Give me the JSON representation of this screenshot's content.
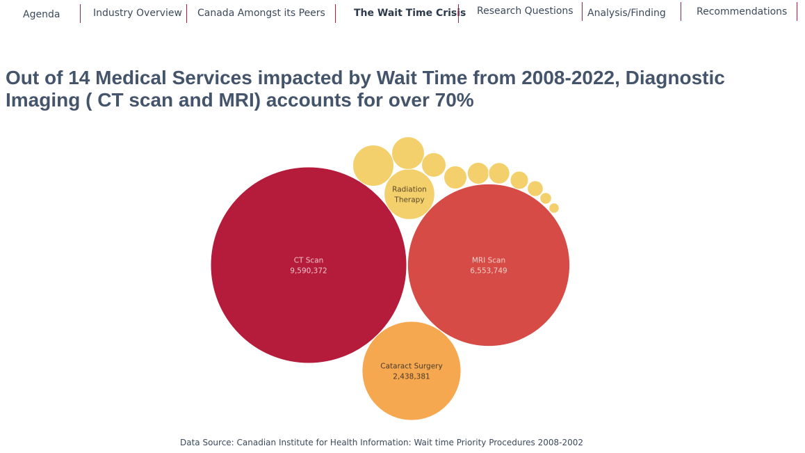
{
  "nav": {
    "items": [
      {
        "label": "Agenda",
        "active": false
      },
      {
        "label": "Industry Overview",
        "active": false
      },
      {
        "label": "Canada Amongst its Peers",
        "active": false
      },
      {
        "label": "The Wait Time Crisis",
        "active": true
      },
      {
        "label": "Research Questions",
        "active": false
      },
      {
        "label": "Analysis/Finding",
        "active": false
      },
      {
        "label": "Recommendations",
        "active": false
      }
    ]
  },
  "page": {
    "title": "Out of 14 Medical Services impacted by Wait Time from 2008-2022, Diagnostic Imaging ( CT scan and MRI) accounts for over 70%",
    "source": "Data Source: Canadian Institute for Health Information: Wait time Priority Procedures 2008-2002"
  },
  "colors": {
    "ct": "#b51b3b",
    "mri": "#d64b46",
    "cataract": "#f5a84f",
    "other": "#f3d06b",
    "nav_divider": "#b5193c",
    "title": "#44546a"
  },
  "chart_data": {
    "type": "bubble",
    "title": "",
    "bubbles": [
      {
        "name": "CT Scan",
        "value": 9590372,
        "value_label": "9,590,372",
        "color": "#b51b3b",
        "label_color": "#f0c4cc"
      },
      {
        "name": "MRI Scan",
        "value": 6553749,
        "value_label": "6,553,749",
        "color": "#d64b46",
        "label_color": "#f6cfc9"
      },
      {
        "name": "Cataract Surgery",
        "value": 2438381,
        "value_label": "2,438,381",
        "color": "#f5a84f",
        "label_color": "#4a3a2a"
      },
      {
        "name": "Radiation Therapy",
        "value": 636000,
        "value_label": "",
        "color": "#f3d06b",
        "label_color": "#5a4a2a"
      },
      {
        "name": "",
        "value": 420000,
        "value_label": "",
        "color": "#f3d06b"
      },
      {
        "name": "",
        "value": 265000,
        "value_label": "",
        "color": "#f3d06b"
      },
      {
        "name": "",
        "value": 148000,
        "value_label": "",
        "color": "#f3d06b"
      },
      {
        "name": "",
        "value": 131000,
        "value_label": "",
        "color": "#f3d06b"
      },
      {
        "name": "",
        "value": 117000,
        "value_label": "",
        "color": "#f3d06b"
      },
      {
        "name": "",
        "value": 111000,
        "value_label": "",
        "color": "#f3d06b"
      },
      {
        "name": "",
        "value": 81000,
        "value_label": "",
        "color": "#f3d06b"
      },
      {
        "name": "",
        "value": 62000,
        "value_label": "",
        "color": "#f3d06b"
      },
      {
        "name": "",
        "value": 33000,
        "value_label": "",
        "color": "#f3d06b"
      },
      {
        "name": "",
        "value": 26000,
        "value_label": "",
        "color": "#f3d06b"
      }
    ]
  }
}
